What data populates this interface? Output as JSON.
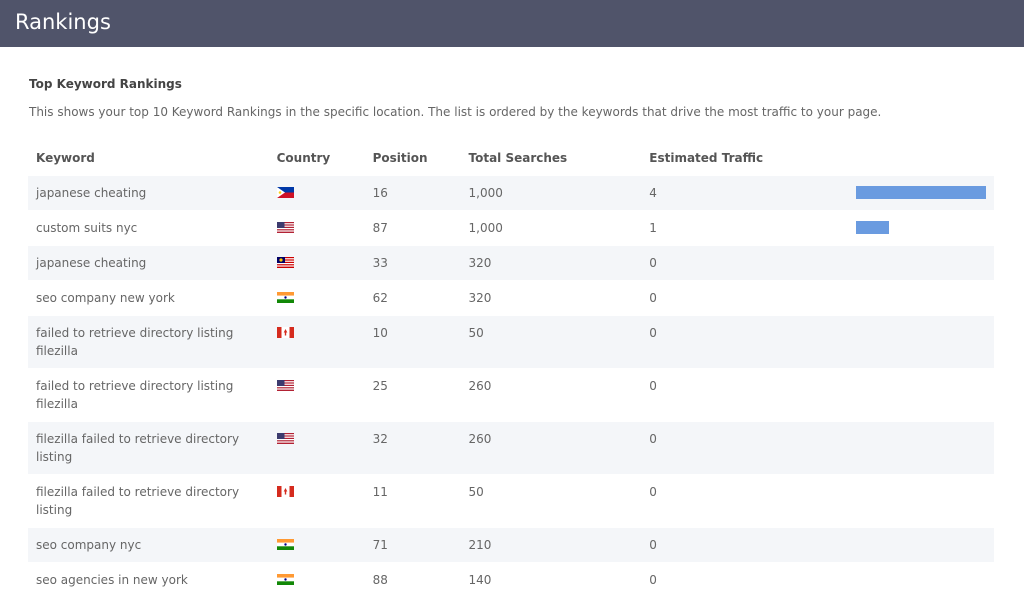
{
  "header": {
    "title": "Rankings"
  },
  "section": {
    "title": "Top Keyword Rankings",
    "description": "This shows your top 10 Keyword Rankings in the specific location. The list is ordered by the keywords that drive the most traffic to your page."
  },
  "table": {
    "headers": [
      "Keyword",
      "Country",
      "Position",
      "Total Searches",
      "Estimated Traffic"
    ],
    "rows": [
      {
        "keyword": "japanese cheating",
        "position": 16,
        "searches": "1,000",
        "traffic": 4
      },
      {
        "keyword": "custom suits nyc",
        "position": 87,
        "searches": "1,000",
        "traffic": 1
      },
      {
        "keyword": "japanese cheating",
        "position": 33,
        "searches": "320",
        "traffic": 0
      },
      {
        "keyword": "seo company new york",
        "position": 62,
        "searches": "320",
        "traffic": 0
      },
      {
        "keyword": "failed to retrieve directory listing filezilla",
        "position": 10,
        "searches": "50",
        "traffic": 0
      },
      {
        "keyword": "failed to retrieve directory listing filezilla",
        "position": 25,
        "searches": "260",
        "traffic": 0
      },
      {
        "keyword": "filezilla failed to retrieve directory listing",
        "position": 32,
        "searches": "260",
        "traffic": 0
      },
      {
        "keyword": "filezilla failed to retrieve directory listing",
        "position": 11,
        "searches": "50",
        "traffic": 0
      },
      {
        "keyword": "seo company nyc",
        "position": 71,
        "searches": "210",
        "traffic": 0
      },
      {
        "keyword": "seo agencies in new york",
        "position": 88,
        "searches": "140",
        "traffic": 0
      }
    ]
  }
}
